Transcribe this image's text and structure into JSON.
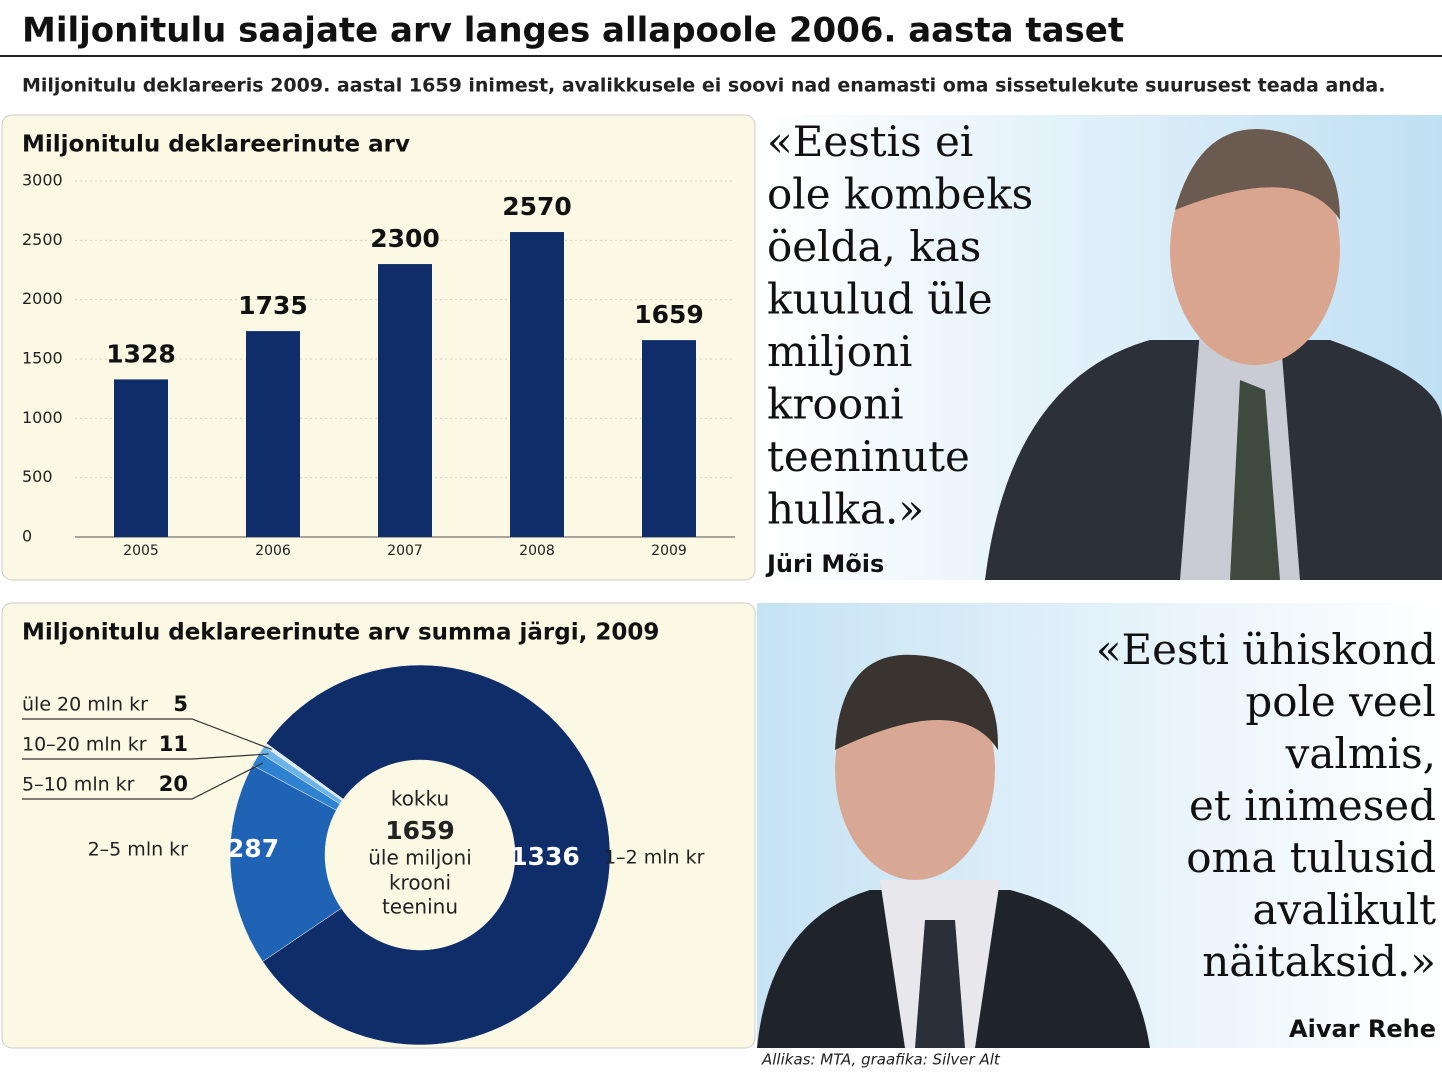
{
  "header": {
    "title": "Miljonitulu saajate arv langes allapoole 2006. aasta taset",
    "subtitle": "Miljonitulu deklareeris 2009. aastal 1659 inimest, avalikkusele ei soovi nad enamasti oma sissetulekute suurusest teada anda."
  },
  "chart_data": [
    {
      "type": "bar",
      "title": "Miljonitulu deklareerinute arv",
      "categories": [
        "2005",
        "2006",
        "2007",
        "2008",
        "2009"
      ],
      "values": [
        1328,
        1735,
        2300,
        2570,
        1659
      ],
      "color": "#0f2d69",
      "ylim": [
        0,
        3000
      ],
      "yticks": [
        0,
        500,
        1000,
        1500,
        2000,
        2500,
        3000
      ],
      "grid": true
    },
    {
      "type": "donut",
      "title": "Miljonitulu deklareerinute arv summa järgi, 2009",
      "categories": [
        "1–2 mln kr",
        "2–5 mln kr",
        "5–10 mln kr",
        "10–20 mln kr",
        "üle 20 mln kr"
      ],
      "values": [
        1336,
        287,
        20,
        11,
        5
      ],
      "colors": [
        "#0f2d69",
        "#1f63b5",
        "#2f82d0",
        "#6bb3e8",
        "#d6ecfa"
      ],
      "center_text": [
        "kokku",
        "1659",
        "üle miljoni",
        "krooni",
        "teeninu"
      ]
    }
  ],
  "quotes": [
    {
      "lines": [
        "«Eestis ei",
        "ole kombeks",
        "öelda, kas",
        "kuulud üle",
        "miljoni",
        "krooni",
        "teeninute",
        "hulka.»"
      ],
      "author": "Jüri Mõis"
    },
    {
      "lines": [
        "«Eesti ühiskond",
        "pole veel",
        "valmis,",
        "et inimesed",
        "oma tulusid",
        "avalikult",
        "näitaksid.»"
      ],
      "author": "Aivar Rehe"
    }
  ],
  "source": "Allikas: MTA, graafika: Silver Alt"
}
